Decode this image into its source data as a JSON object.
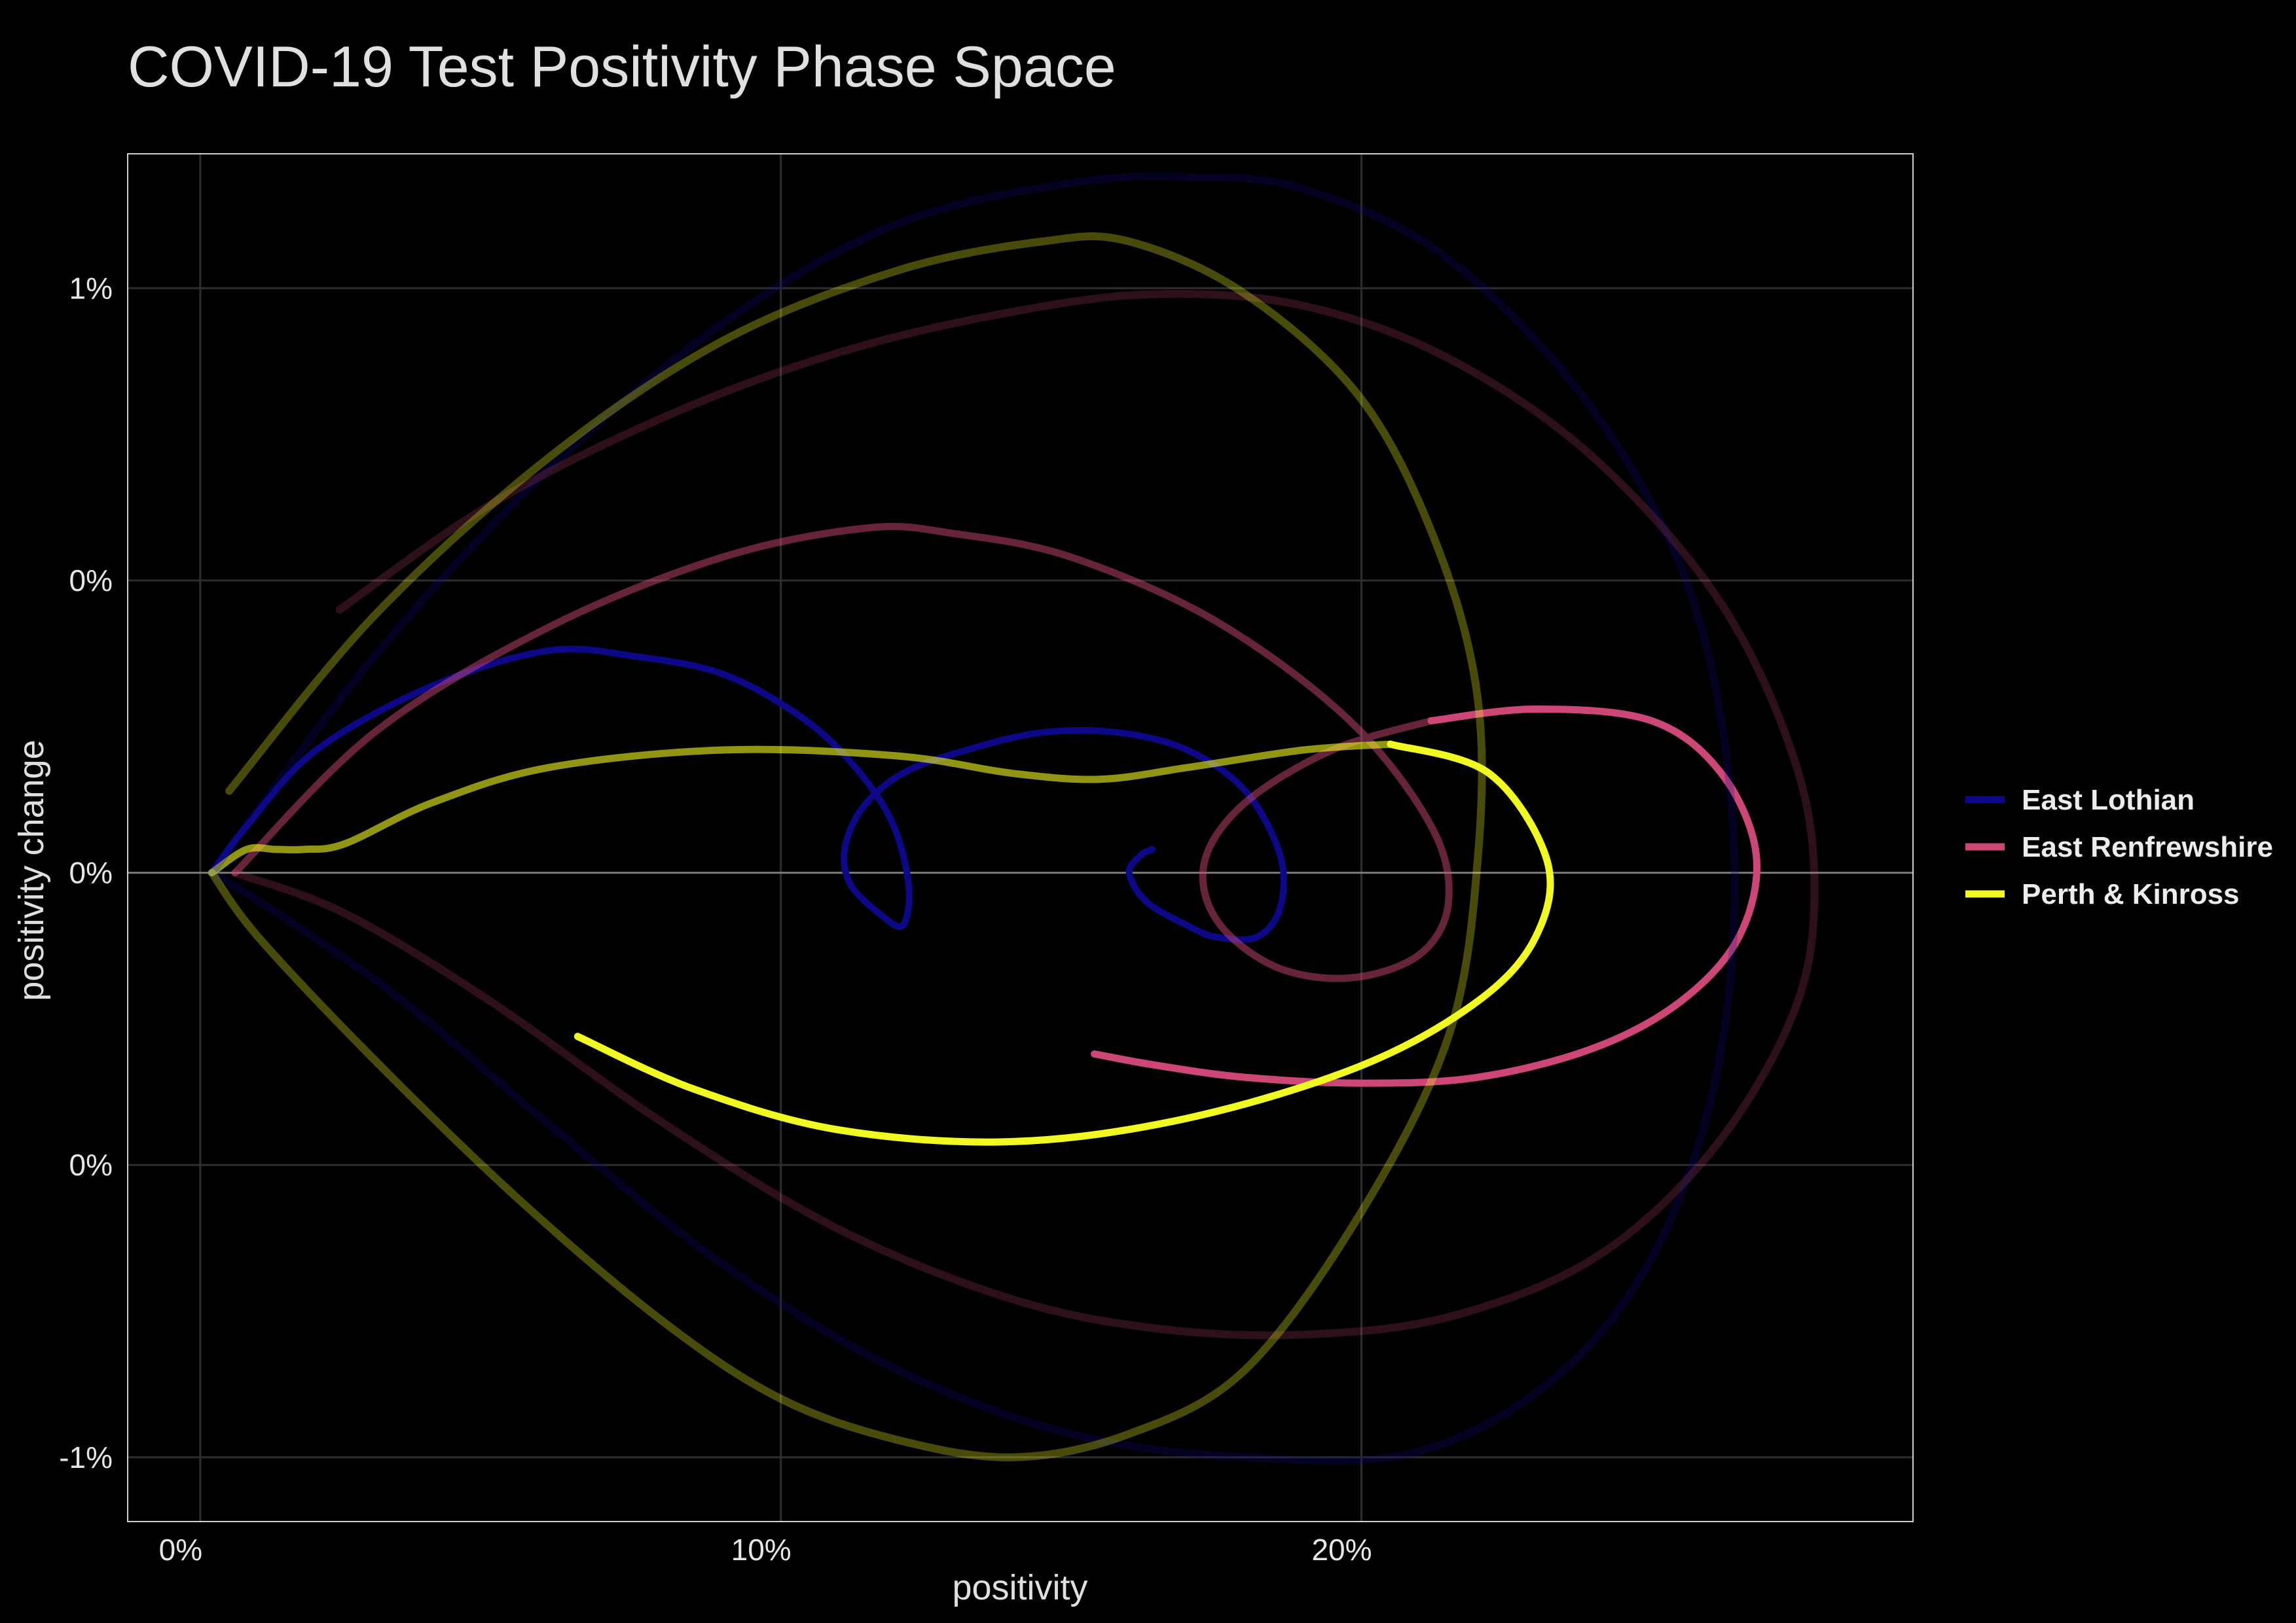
{
  "chart_data": {
    "type": "line",
    "title": "COVID-19 Test Positivity Phase Space",
    "xlabel": "positivity",
    "ylabel": "positivity change",
    "xlim": [
      -0.0125,
      0.295
    ],
    "ylim": [
      -0.0111,
      0.0123
    ],
    "x_ticks": [
      {
        "value": 0.0,
        "label": "0%"
      },
      {
        "value": 0.1,
        "label": "10%"
      },
      {
        "value": 0.2,
        "label": "20%"
      }
    ],
    "y_ticks": [
      {
        "value": -0.01,
        "label": "-1%"
      },
      {
        "value": -0.005,
        "label": "0%"
      },
      {
        "value": 0.0,
        "label": "0%"
      },
      {
        "value": 0.005,
        "label": "0%"
      },
      {
        "value": 0.01,
        "label": "1%"
      }
    ],
    "grid": true,
    "zero_line": true,
    "legend_position": "right",
    "legend": [
      {
        "name": "East Lothian",
        "color": "#0d0887"
      },
      {
        "name": "East Renfrewshire",
        "color": "#cc4778"
      },
      {
        "name": "Perth & Kinross",
        "color": "#f0f921"
      }
    ],
    "series": [
      {
        "name": "East Lothian",
        "color": "#0d0887",
        "opacity": 1.0,
        "width": 10,
        "x": [
          0.002,
          0.008,
          0.02,
          0.04,
          0.06,
          0.075,
          0.09,
          0.103,
          0.112,
          0.119,
          0.122,
          0.121,
          0.117,
          0.112,
          0.111,
          0.114,
          0.121,
          0.132,
          0.145,
          0.158,
          0.17,
          0.18,
          0.186,
          0.186,
          0.182,
          0.175,
          0.17,
          0.163,
          0.16,
          0.162,
          0.164
        ],
        "y": [
          0.0,
          0.0008,
          0.0021,
          0.0032,
          0.0038,
          0.0037,
          0.0034,
          0.0027,
          0.0019,
          0.0009,
          -0.0002,
          -0.0009,
          -0.0007,
          -0.0002,
          0.0004,
          0.0011,
          0.0017,
          0.0021,
          0.0024,
          0.0024,
          0.0021,
          0.0014,
          0.0003,
          -0.0006,
          -0.0011,
          -0.0011,
          -0.0009,
          -0.0005,
          0.0,
          0.0003,
          0.0004
        ]
      },
      {
        "name": "East Renfrewshire",
        "color": "#cc4778",
        "opacity": 0.5,
        "width": 11,
        "x": [
          0.006,
          0.03,
          0.06,
          0.09,
          0.115,
          0.13,
          0.15,
          0.175,
          0.198,
          0.212,
          0.215,
          0.21,
          0.198,
          0.185,
          0.175,
          0.173,
          0.18,
          0.195,
          0.212
        ],
        "y": [
          0.0,
          0.0024,
          0.0042,
          0.0054,
          0.0059,
          0.0058,
          0.0054,
          0.0043,
          0.0026,
          0.0008,
          -0.0005,
          -0.0014,
          -0.0018,
          -0.0016,
          -0.0008,
          0.0002,
          0.0012,
          0.0021,
          0.0026
        ]
      },
      {
        "name": "East Renfrewshire",
        "color": "#cc4778",
        "opacity": 1.0,
        "width": 11,
        "x": [
          0.212,
          0.23,
          0.25,
          0.262,
          0.268,
          0.265,
          0.255,
          0.24,
          0.22,
          0.2,
          0.18,
          0.165,
          0.154
        ],
        "y": [
          0.0026,
          0.0028,
          0.0026,
          0.0017,
          0.0003,
          -0.0011,
          -0.0022,
          -0.003,
          -0.0035,
          -0.0036,
          -0.0035,
          -0.0033,
          -0.0031
        ]
      },
      {
        "name": "Perth & Kinross",
        "color": "#f0f921",
        "opacity": 0.6,
        "width": 11,
        "x": [
          0.002,
          0.008,
          0.013,
          0.018,
          0.025,
          0.04,
          0.06,
          0.09,
          0.12,
          0.14,
          0.155,
          0.17,
          0.19,
          0.205
        ],
        "y": [
          0.0,
          0.0004,
          0.0004,
          0.0004,
          0.0005,
          0.0012,
          0.0018,
          0.0021,
          0.002,
          0.0017,
          0.0016,
          0.0018,
          0.0021,
          0.0022
        ]
      },
      {
        "name": "Perth & Kinross",
        "color": "#f0f921",
        "opacity": 1.0,
        "width": 11,
        "x": [
          0.205,
          0.222,
          0.232,
          0.23,
          0.22,
          0.2,
          0.17,
          0.14,
          0.11,
          0.085,
          0.065
        ],
        "y": [
          0.0022,
          0.0017,
          0.0002,
          -0.0011,
          -0.0022,
          -0.0033,
          -0.0042,
          -0.0046,
          -0.0044,
          -0.0037,
          -0.0028
        ]
      },
      {
        "name": "East Lothian",
        "color": "#0d0887",
        "opacity": 0.25,
        "width": 12,
        "x": [
          0.002,
          0.03,
          0.06,
          0.09,
          0.12,
          0.15,
          0.17,
          0.19,
          0.215,
          0.24,
          0.257,
          0.264,
          0.262,
          0.252,
          0.235,
          0.21,
          0.18,
          0.15,
          0.12,
          0.09,
          0.06,
          0.035,
          0.015,
          0.002
        ],
        "y": [
          0.0,
          0.0037,
          0.0069,
          0.0094,
          0.0111,
          0.0118,
          0.0119,
          0.0117,
          0.0105,
          0.0079,
          0.0047,
          0.0008,
          -0.003,
          -0.0062,
          -0.0085,
          -0.0099,
          -0.01,
          -0.0096,
          -0.0085,
          -0.0067,
          -0.0043,
          -0.0022,
          -0.0008,
          0.0
        ]
      },
      {
        "name": "East Renfrewshire",
        "color": "#cc4778",
        "opacity": 0.22,
        "width": 12,
        "x": [
          0.024,
          0.05,
          0.08,
          0.11,
          0.14,
          0.165,
          0.19,
          0.215,
          0.24,
          0.262,
          0.275,
          0.278,
          0.274,
          0.26,
          0.24,
          0.215,
          0.19,
          0.165,
          0.14,
          0.11,
          0.08,
          0.05,
          0.025,
          0.006
        ],
        "y": [
          0.0045,
          0.0063,
          0.0078,
          0.0089,
          0.0096,
          0.0099,
          0.0097,
          0.0088,
          0.0071,
          0.0046,
          0.0018,
          -0.0005,
          -0.0025,
          -0.0048,
          -0.0066,
          -0.0076,
          -0.0079,
          -0.0078,
          -0.0073,
          -0.0061,
          -0.0043,
          -0.0022,
          -0.0007,
          0.0
        ]
      },
      {
        "name": "Perth & Kinross",
        "color": "#f0f921",
        "opacity": 0.3,
        "width": 12,
        "x": [
          0.005,
          0.03,
          0.06,
          0.09,
          0.12,
          0.145,
          0.16,
          0.18,
          0.2,
          0.213,
          0.22,
          0.22,
          0.215,
          0.2,
          0.18,
          0.16,
          0.14,
          0.12,
          0.1,
          0.08,
          0.055,
          0.03,
          0.01,
          0.002
        ],
        "y": [
          0.0014,
          0.0044,
          0.0071,
          0.0091,
          0.0103,
          0.0108,
          0.0108,
          0.0099,
          0.0081,
          0.0056,
          0.003,
          0.0002,
          -0.0028,
          -0.0058,
          -0.0085,
          -0.0096,
          -0.01,
          -0.0097,
          -0.009,
          -0.0077,
          -0.0056,
          -0.0032,
          -0.0011,
          0.0
        ]
      }
    ]
  }
}
